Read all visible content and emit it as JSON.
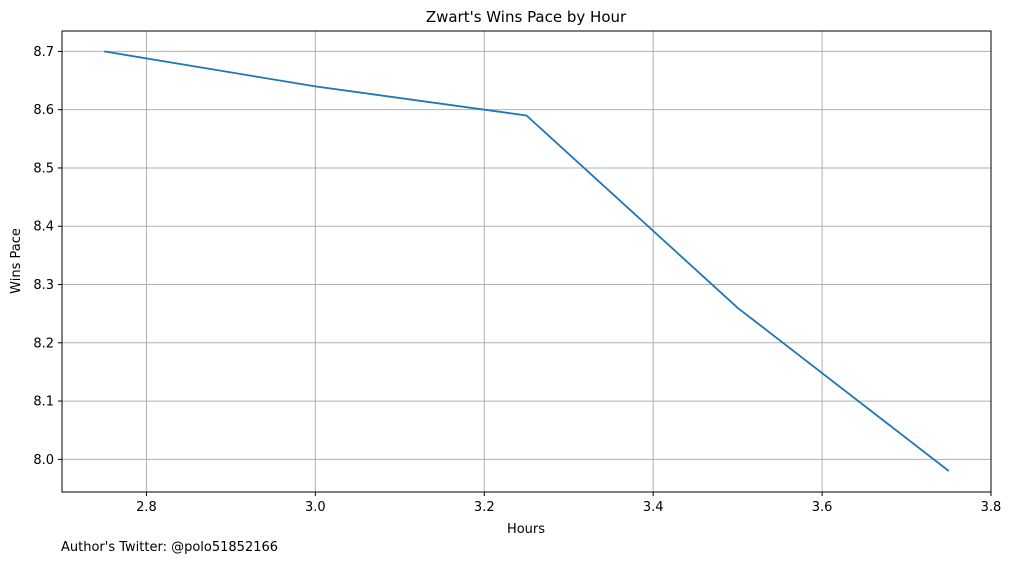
{
  "chart_data": {
    "type": "line",
    "title": "Zwart's Wins Pace by Hour",
    "xlabel": "Hours",
    "ylabel": "Wins Pace",
    "xlim": [
      2.7,
      3.8
    ],
    "ylim": [
      7.944,
      8.735
    ],
    "x_ticks": [
      "2.8",
      "3.0",
      "3.2",
      "3.4",
      "3.6",
      "3.8"
    ],
    "y_ticks": [
      "8.0",
      "8.1",
      "8.2",
      "8.3",
      "8.4",
      "8.5",
      "8.6",
      "8.7"
    ],
    "grid": true,
    "series": [
      {
        "color": "#1f77b4",
        "x": [
          2.75,
          3.0,
          3.25,
          3.5,
          3.75
        ],
        "y": [
          8.7,
          8.64,
          8.59,
          8.26,
          7.98
        ]
      }
    ]
  },
  "footer": {
    "note": "Author's Twitter: @polo51852166"
  }
}
